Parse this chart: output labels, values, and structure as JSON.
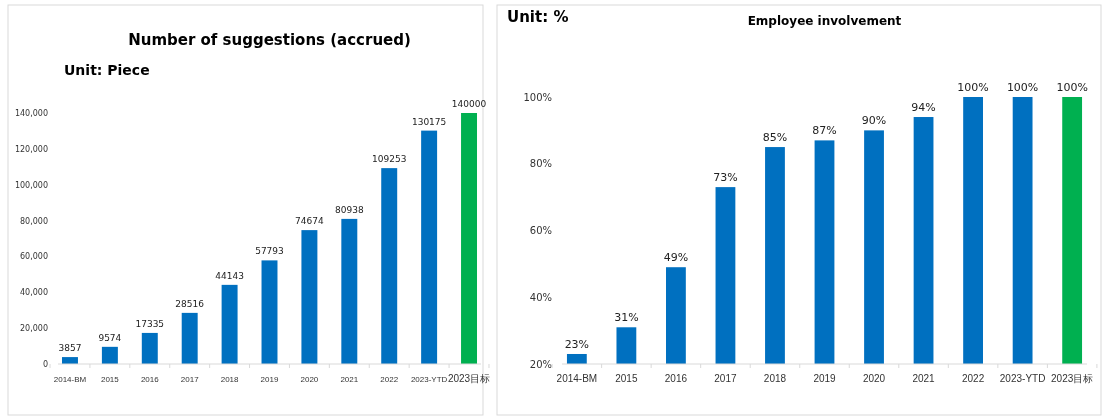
{
  "chart_data": [
    {
      "type": "bar",
      "title": "Number of suggestions (accrued)",
      "annotations": [
        "Unit: Piece"
      ],
      "categories": [
        "2014-BM",
        "2015",
        "2016",
        "2017",
        "2018",
        "2019",
        "2020",
        "2021",
        "2022",
        "2023-YTD",
        "2023目标"
      ],
      "values": [
        3857,
        9574,
        17335,
        28516,
        44143,
        57793,
        74674,
        80938,
        109253,
        130175,
        140000
      ],
      "colors": [
        "#0070c0",
        "#0070c0",
        "#0070c0",
        "#0070c0",
        "#0070c0",
        "#0070c0",
        "#0070c0",
        "#0070c0",
        "#0070c0",
        "#0070c0",
        "#00b050"
      ],
      "ylim": [
        0,
        140000
      ],
      "yticks": [
        {
          "value": 0,
          "label": "0"
        },
        {
          "value": 20000,
          "label": "20,000"
        },
        {
          "value": 40000,
          "label": "40,000"
        },
        {
          "value": 60000,
          "label": "60,000"
        },
        {
          "value": 80000,
          "label": "80,000"
        },
        {
          "value": 100000,
          "label": "100,000"
        },
        {
          "value": 120000,
          "label": "120,000"
        },
        {
          "value": 140000,
          "label": "140,000"
        }
      ],
      "data_labels": true
    },
    {
      "type": "bar",
      "title": "Employee involvement",
      "annotations": [
        "Unit: %"
      ],
      "categories": [
        "2014-BM",
        "2015",
        "2016",
        "2017",
        "2018",
        "2019",
        "2020",
        "2021",
        "2022",
        "2023-YTD",
        "2023目标"
      ],
      "values": [
        23,
        31,
        49,
        73,
        85,
        87,
        90,
        94,
        100,
        100,
        100
      ],
      "value_labels": [
        "23%",
        "31%",
        "49%",
        "73%",
        "85%",
        "87%",
        "90%",
        "94%",
        "100%",
        "100%",
        "100%"
      ],
      "colors": [
        "#0070c0",
        "#0070c0",
        "#0070c0",
        "#0070c0",
        "#0070c0",
        "#0070c0",
        "#0070c0",
        "#0070c0",
        "#0070c0",
        "#0070c0",
        "#00b050"
      ],
      "ylim": [
        20,
        100
      ],
      "yticks": [
        {
          "value": 20,
          "label": "20%"
        },
        {
          "value": 40,
          "label": "40%"
        },
        {
          "value": 60,
          "label": "60%"
        },
        {
          "value": 80,
          "label": "80%"
        },
        {
          "value": 100,
          "label": "100%"
        }
      ],
      "tick_labels": true
    }
  ]
}
